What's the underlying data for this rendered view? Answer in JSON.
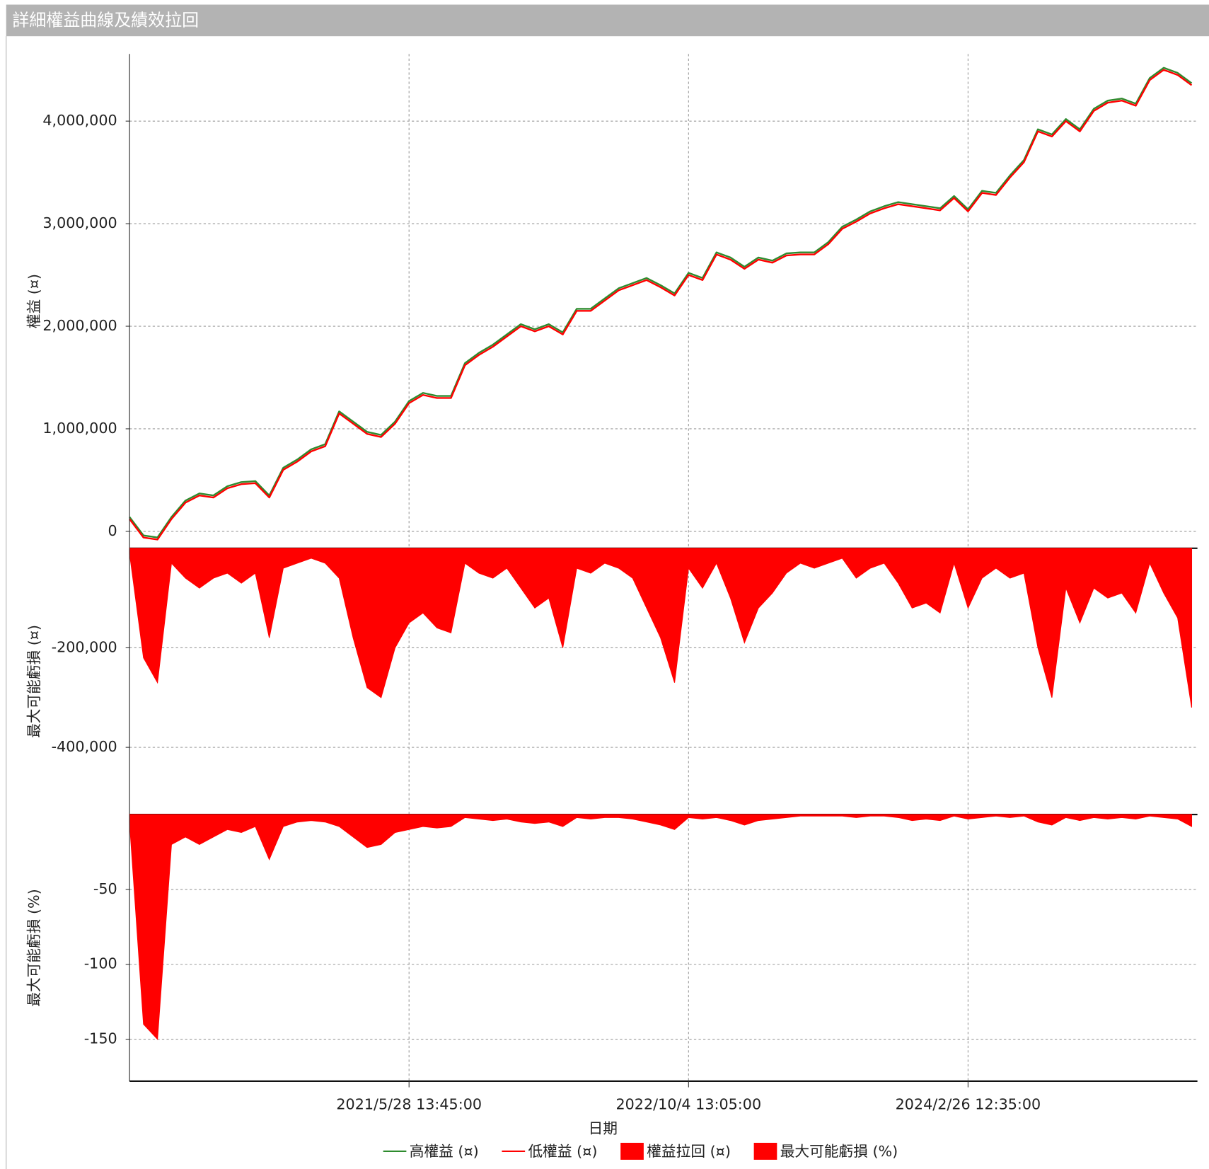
{
  "title": "詳細權益曲線及績效拉回",
  "chart_data": [
    {
      "type": "line",
      "ylabel": "權益 (¤)",
      "ylim": [
        -165000,
        4655000
      ],
      "yticks": [
        0,
        {
          "value": 1000000,
          "label": "1,000,000"
        },
        {
          "value": 2000000,
          "label": "2,000,000"
        },
        {
          "value": 3000000,
          "label": "3,000,000"
        },
        {
          "value": 4000000,
          "label": "4,000,000"
        }
      ],
      "grid": true,
      "series": [
        {
          "name": "高權益 (¤)",
          "color": "#2e8b2e",
          "values": [
            140000,
            -40000,
            -60000,
            140000,
            300000,
            370000,
            350000,
            440000,
            480000,
            490000,
            350000,
            620000,
            700000,
            800000,
            850000,
            1170000,
            1070000,
            970000,
            940000,
            1070000,
            1270000,
            1350000,
            1320000,
            1320000,
            1640000,
            1740000,
            1820000,
            1920000,
            2020000,
            1970000,
            2020000,
            1940000,
            2170000,
            2170000,
            2270000,
            2370000,
            2420000,
            2470000,
            2400000,
            2320000,
            2520000,
            2470000,
            2720000,
            2670000,
            2580000,
            2670000,
            2640000,
            2710000,
            2720000,
            2720000,
            2820000,
            2970000,
            3040000,
            3120000,
            3170000,
            3210000,
            3190000,
            3170000,
            3150000,
            3270000,
            3140000,
            3320000,
            3300000,
            3470000,
            3620000,
            3920000,
            3870000,
            4020000,
            3920000,
            4120000,
            4200000,
            4220000,
            4170000,
            4420000,
            4520000,
            4470000,
            4370000
          ]
        },
        {
          "name": "低權益 (¤)",
          "color": "#ff0000",
          "values": [
            120000,
            -60000,
            -80000,
            120000,
            280000,
            350000,
            330000,
            420000,
            460000,
            470000,
            330000,
            600000,
            680000,
            780000,
            830000,
            1150000,
            1050000,
            950000,
            920000,
            1050000,
            1250000,
            1330000,
            1300000,
            1300000,
            1620000,
            1720000,
            1800000,
            1900000,
            2000000,
            1950000,
            2000000,
            1920000,
            2150000,
            2150000,
            2250000,
            2350000,
            2400000,
            2450000,
            2380000,
            2300000,
            2500000,
            2450000,
            2700000,
            2650000,
            2560000,
            2650000,
            2620000,
            2690000,
            2700000,
            2700000,
            2800000,
            2950000,
            3020000,
            3100000,
            3150000,
            3190000,
            3170000,
            3150000,
            3130000,
            3250000,
            3120000,
            3300000,
            3280000,
            3450000,
            3600000,
            3900000,
            3850000,
            4000000,
            3900000,
            4100000,
            4180000,
            4200000,
            4150000,
            4400000,
            4500000,
            4450000,
            4350000
          ]
        }
      ]
    },
    {
      "type": "area",
      "ylabel": "最大可能虧損 (¤)",
      "ylim": [
        -535000,
        0
      ],
      "yticks": [
        {
          "value": -200000,
          "label": "-200,000"
        },
        {
          "value": -400000,
          "label": "-400,000"
        }
      ],
      "grid": true,
      "series": [
        {
          "name": "權益拉回 (¤)",
          "color": "#ff0000",
          "values": [
            -10000,
            -220000,
            -270000,
            -30000,
            -60000,
            -80000,
            -60000,
            -50000,
            -70000,
            -50000,
            -180000,
            -40000,
            -30000,
            -20000,
            -30000,
            -60000,
            -180000,
            -280000,
            -300000,
            -200000,
            -150000,
            -130000,
            -160000,
            -170000,
            -30000,
            -50000,
            -60000,
            -40000,
            -80000,
            -120000,
            -100000,
            -200000,
            -40000,
            -50000,
            -30000,
            -40000,
            -60000,
            -120000,
            -180000,
            -270000,
            -40000,
            -80000,
            -30000,
            -100000,
            -190000,
            -120000,
            -90000,
            -50000,
            -30000,
            -40000,
            -30000,
            -20000,
            -60000,
            -40000,
            -30000,
            -70000,
            -120000,
            -110000,
            -130000,
            -30000,
            -120000,
            -60000,
            -40000,
            -60000,
            -50000,
            -200000,
            -300000,
            -80000,
            -150000,
            -80000,
            -100000,
            -90000,
            -130000,
            -30000,
            -90000,
            -140000,
            -320000
          ]
        }
      ]
    },
    {
      "type": "area",
      "ylabel": "最大可能虧損 (%)",
      "ylim": [
        -178,
        0
      ],
      "yticks": [
        -50,
        -100,
        -150
      ],
      "grid": true,
      "xlabel": "日期",
      "categories": [
        null,
        null,
        null,
        null,
        null,
        null,
        null,
        null,
        null,
        null,
        null,
        null,
        null,
        null,
        null,
        null,
        null,
        null,
        null,
        null,
        "2021/5/28 13:45:00",
        null,
        null,
        null,
        null,
        null,
        null,
        null,
        null,
        null,
        null,
        null,
        null,
        null,
        null,
        null,
        null,
        null,
        null,
        null,
        "2022/10/4 13:05:00",
        null,
        null,
        null,
        null,
        null,
        null,
        null,
        null,
        null,
        null,
        null,
        null,
        null,
        null,
        null,
        null,
        null,
        null,
        null,
        "2024/2/26 12:35:00",
        null,
        null,
        null,
        null,
        null,
        null,
        null,
        null,
        null,
        null,
        null,
        null,
        null,
        null,
        null,
        null
      ],
      "series": [
        {
          "name": "最大可能虧損 (%)",
          "color": "#ff0000",
          "values": [
            -5,
            -140,
            -150,
            -20,
            -15,
            -20,
            -15,
            -10,
            -12,
            -8,
            -30,
            -8,
            -5,
            -4,
            -5,
            -8,
            -15,
            -22,
            -20,
            -12,
            -10,
            -8,
            -9,
            -8,
            -2,
            -3,
            -4,
            -3,
            -5,
            -6,
            -5,
            -8,
            -2,
            -3,
            -2,
            -2,
            -3,
            -5,
            -7,
            -10,
            -2,
            -3,
            -2,
            -4,
            -7,
            -4,
            -3,
            -2,
            -1,
            -1,
            -1,
            -1,
            -2,
            -1,
            -1,
            -2,
            -4,
            -3,
            -4,
            -1,
            -3,
            -2,
            -1,
            -2,
            -1,
            -5,
            -7,
            -2,
            -4,
            -2,
            -3,
            -2,
            -3,
            -1,
            -2,
            -3,
            -8
          ]
        }
      ]
    }
  ]
}
